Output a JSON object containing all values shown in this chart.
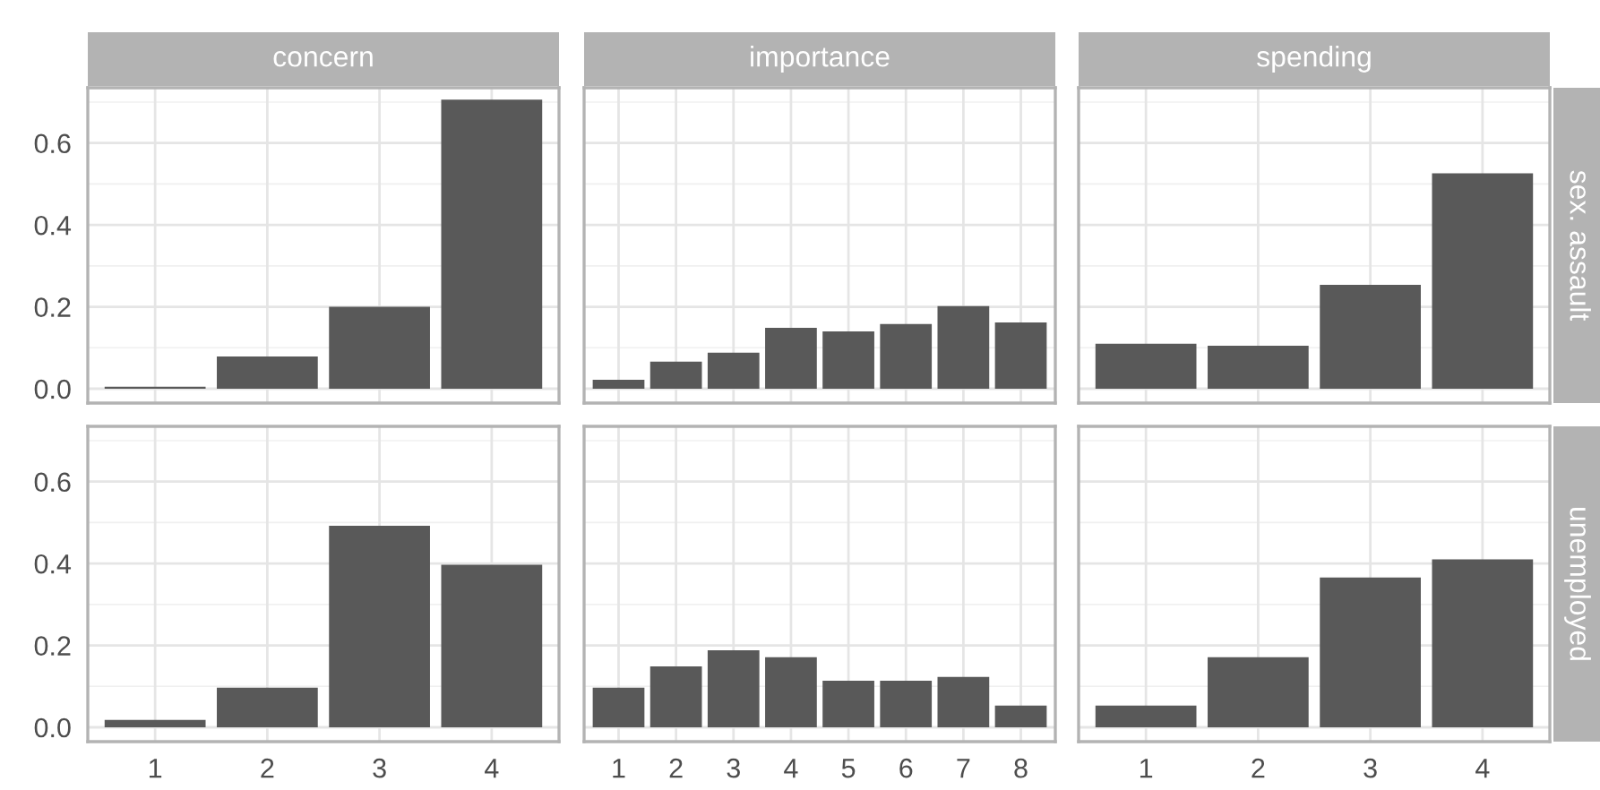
{
  "chart_data": [
    {
      "type": "bar",
      "title": "concern",
      "categories": [
        "1",
        "2",
        "3",
        "4"
      ],
      "values": [
        0.005,
        0.079,
        0.2,
        0.706
      ],
      "color": "#595959",
      "ylim": [
        -0.035,
        0.735
      ],
      "yticks": [
        {
          "value": 0,
          "label": "0.0"
        },
        0.2,
        0.4,
        0.6
      ],
      "grid": true,
      "tick_labels": "y"
    },
    {
      "type": "bar",
      "title": "importance",
      "categories": [
        "1",
        "2",
        "3",
        "4",
        "5",
        "6",
        "7",
        "8"
      ],
      "values": [
        0.022,
        0.066,
        0.088,
        0.149,
        0.14,
        0.158,
        0.202,
        0.162
      ],
      "color": "#595959",
      "ylim": [
        -0.035,
        0.735
      ],
      "yticks": [
        0,
        0.2,
        0.4,
        0.6
      ],
      "grid": true,
      "tick_labels": false
    },
    {
      "type": "bar",
      "title": "spending",
      "annotations": [
        "sex. assault"
      ],
      "categories": [
        "1",
        "2",
        "3",
        "4"
      ],
      "values": [
        0.11,
        0.105,
        0.254,
        0.526
      ],
      "color": "#595959",
      "ylim": [
        -0.035,
        0.735
      ],
      "yticks": [
        0,
        0.2,
        0.4,
        0.6
      ],
      "grid": true,
      "tick_labels": false
    },
    {
      "type": "bar",
      "categories": [
        "1",
        "2",
        "3",
        "4"
      ],
      "values": [
        0.018,
        0.097,
        0.492,
        0.397
      ],
      "color": "#595959",
      "ylim": [
        -0.035,
        0.735
      ],
      "yticks": [
        {
          "value": 0,
          "label": "0.0"
        },
        0.2,
        0.4,
        0.6
      ],
      "grid": true
    },
    {
      "type": "bar",
      "categories": [
        "1",
        "2",
        "3",
        "4",
        "5",
        "6",
        "7",
        "8"
      ],
      "values": [
        0.097,
        0.149,
        0.188,
        0.171,
        0.114,
        0.114,
        0.123,
        0.053
      ],
      "color": "#595959",
      "ylim": [
        -0.035,
        0.735
      ],
      "yticks": [
        0,
        0.2,
        0.4,
        0.6
      ],
      "grid": true,
      "tick_labels": "x"
    },
    {
      "type": "bar",
      "annotations": [
        "unemployed"
      ],
      "categories": [
        "1",
        "2",
        "3",
        "4"
      ],
      "values": [
        0.053,
        0.171,
        0.366,
        0.41
      ],
      "color": "#595959",
      "ylim": [
        -0.035,
        0.735
      ],
      "yticks": [
        0,
        0.2,
        0.4,
        0.6
      ],
      "grid": true,
      "tick_labels": "x"
    }
  ]
}
